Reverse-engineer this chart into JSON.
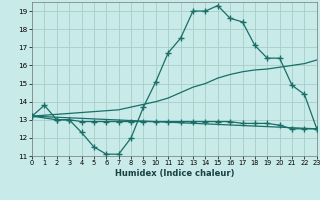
{
  "xlabel": "Humidex (Indice chaleur)",
  "bg_color": "#c8eae8",
  "grid_color": "#a8ceca",
  "line_color": "#1a6e68",
  "xlim": [
    0,
    23
  ],
  "ylim": [
    11,
    19.5
  ],
  "yticks": [
    11,
    12,
    13,
    14,
    15,
    16,
    17,
    18,
    19
  ],
  "xticks": [
    0,
    1,
    2,
    3,
    4,
    5,
    6,
    7,
    8,
    9,
    10,
    11,
    12,
    13,
    14,
    15,
    16,
    17,
    18,
    19,
    20,
    21,
    22,
    23
  ],
  "curve1_x": [
    0,
    1,
    2,
    3,
    4,
    5,
    6,
    7,
    8,
    9,
    10,
    11,
    12,
    13,
    14,
    15,
    16,
    17,
    18,
    19,
    20,
    21,
    22,
    23
  ],
  "curve1_y": [
    13.2,
    13.8,
    13.0,
    13.0,
    12.3,
    11.5,
    11.1,
    11.1,
    12.0,
    13.7,
    15.1,
    16.7,
    17.5,
    19.0,
    19.0,
    19.3,
    18.6,
    18.4,
    17.1,
    16.4,
    16.4,
    14.9,
    14.4,
    12.5
  ],
  "curve2_x": [
    0,
    1,
    2,
    3,
    4,
    5,
    6,
    7,
    8,
    9,
    10,
    11,
    12,
    13,
    14,
    15,
    16,
    17,
    18,
    19,
    20,
    21,
    22,
    23
  ],
  "curve2_y": [
    13.2,
    13.25,
    13.3,
    13.35,
    13.4,
    13.45,
    13.5,
    13.55,
    13.7,
    13.85,
    14.0,
    14.2,
    14.5,
    14.8,
    15.0,
    15.3,
    15.5,
    15.65,
    15.75,
    15.8,
    15.9,
    16.0,
    16.1,
    16.3
  ],
  "curve3_x": [
    0,
    23
  ],
  "curve3_y": [
    13.2,
    12.5
  ],
  "curve4_x": [
    0,
    2,
    3,
    4,
    5,
    6,
    7,
    8,
    9,
    10,
    11,
    12,
    13,
    14,
    15,
    16,
    17,
    18,
    19,
    20,
    21,
    22,
    23
  ],
  "curve4_y": [
    13.2,
    13.0,
    13.0,
    12.9,
    12.9,
    12.9,
    12.9,
    12.9,
    12.9,
    12.9,
    12.9,
    12.9,
    12.9,
    12.9,
    12.9,
    12.9,
    12.8,
    12.8,
    12.8,
    12.7,
    12.5,
    12.5,
    12.5
  ]
}
